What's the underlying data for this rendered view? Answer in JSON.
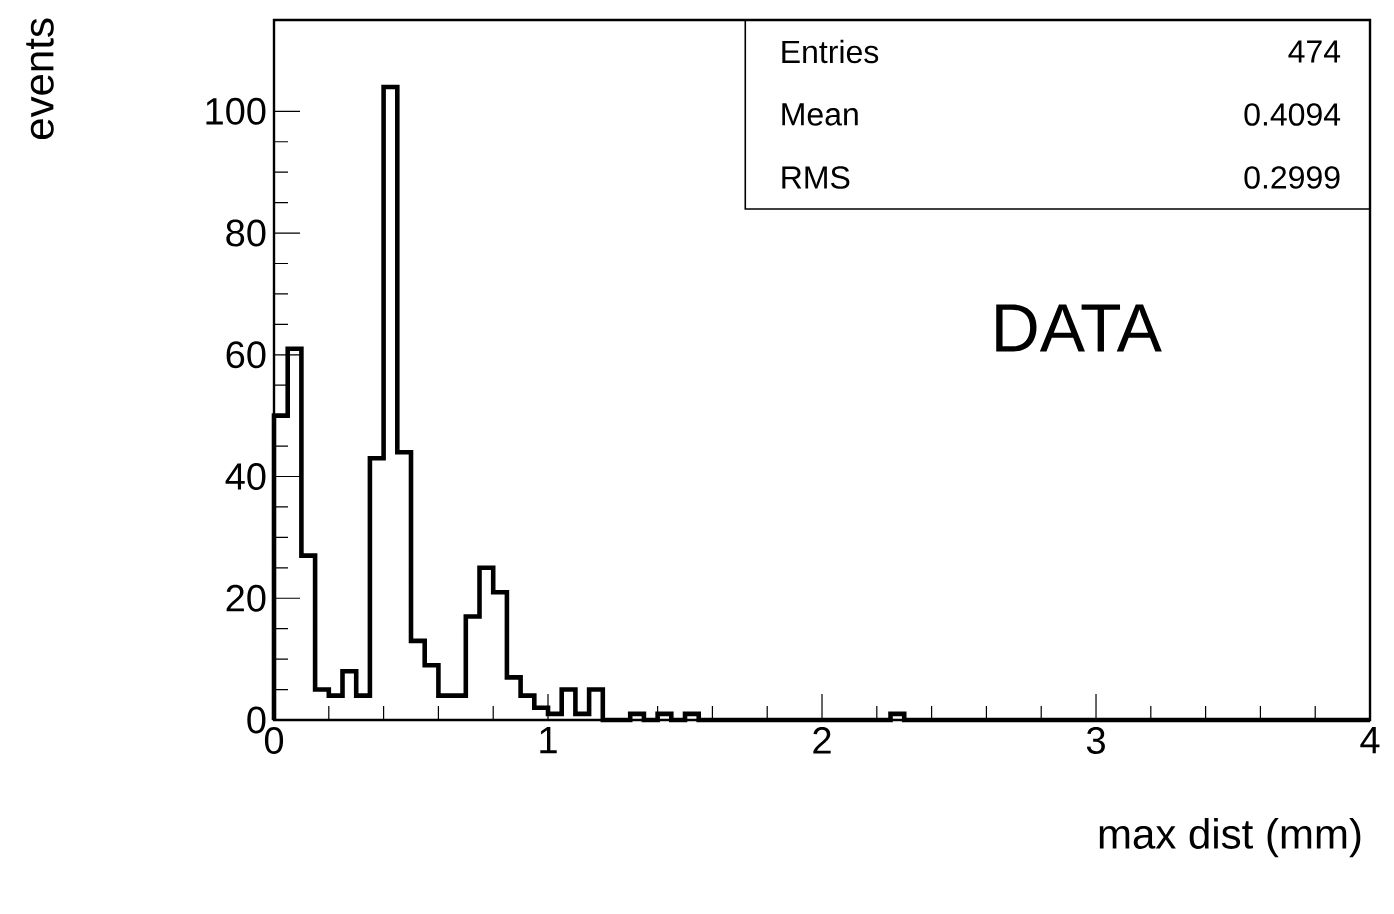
{
  "chart_data": {
    "type": "histogram",
    "xlabel": "max dist (mm)",
    "ylabel": "events",
    "bins": [
      0,
      0.05,
      0.1,
      0.15,
      0.2,
      0.25,
      0.3,
      0.35,
      0.4,
      0.45,
      0.5,
      0.55,
      0.6,
      0.65,
      0.7,
      0.75,
      0.8,
      0.85,
      0.9,
      0.95,
      1,
      1.05,
      1.1,
      1.15,
      1.2,
      1.25,
      1.3,
      1.35,
      1.4,
      1.45,
      1.5,
      1.55,
      1.6,
      1.65,
      1.7,
      1.75,
      1.8,
      1.85,
      1.9,
      1.95,
      2,
      2.05,
      2.1,
      2.15,
      2.2,
      2.25,
      2.3,
      2.35,
      2.4,
      2.45,
      2.5,
      2.55,
      2.6,
      2.65,
      2.7,
      2.75,
      2.8,
      2.85,
      2.9,
      2.95,
      3,
      3.05,
      3.1,
      3.15,
      3.2,
      3.25,
      3.3,
      3.35,
      3.4,
      3.45,
      3.5,
      3.55,
      3.6,
      3.65,
      3.7,
      3.75,
      3.8,
      3.85,
      3.9,
      3.95,
      4
    ],
    "values": [
      50,
      61,
      27,
      5,
      4,
      8,
      4,
      43,
      104,
      44,
      13,
      9,
      4,
      4,
      17,
      25,
      21,
      7,
      4,
      2,
      1,
      5,
      1,
      5,
      0,
      0,
      1,
      0,
      1,
      0,
      1,
      0,
      0,
      0,
      0,
      0,
      0,
      0,
      0,
      0,
      0,
      0,
      0,
      0,
      0,
      1,
      0,
      0,
      0,
      0,
      0,
      0,
      0,
      0,
      0,
      0,
      0,
      0,
      0,
      0,
      0,
      0,
      0,
      0,
      0,
      0,
      0,
      0,
      0,
      0,
      0,
      0,
      0,
      0,
      0,
      0,
      0,
      0,
      0,
      0
    ],
    "color": "#000000",
    "xlim": [
      0,
      4
    ],
    "xticks": [
      0,
      1,
      2,
      3,
      4
    ],
    "ylim": [
      0,
      115
    ],
    "yticks": [
      0,
      20,
      40,
      60,
      80,
      100
    ],
    "annotations": [
      "Entries",
      "474",
      "Mean",
      "0.4094",
      "RMS",
      "0.2999",
      "DATA"
    ]
  }
}
